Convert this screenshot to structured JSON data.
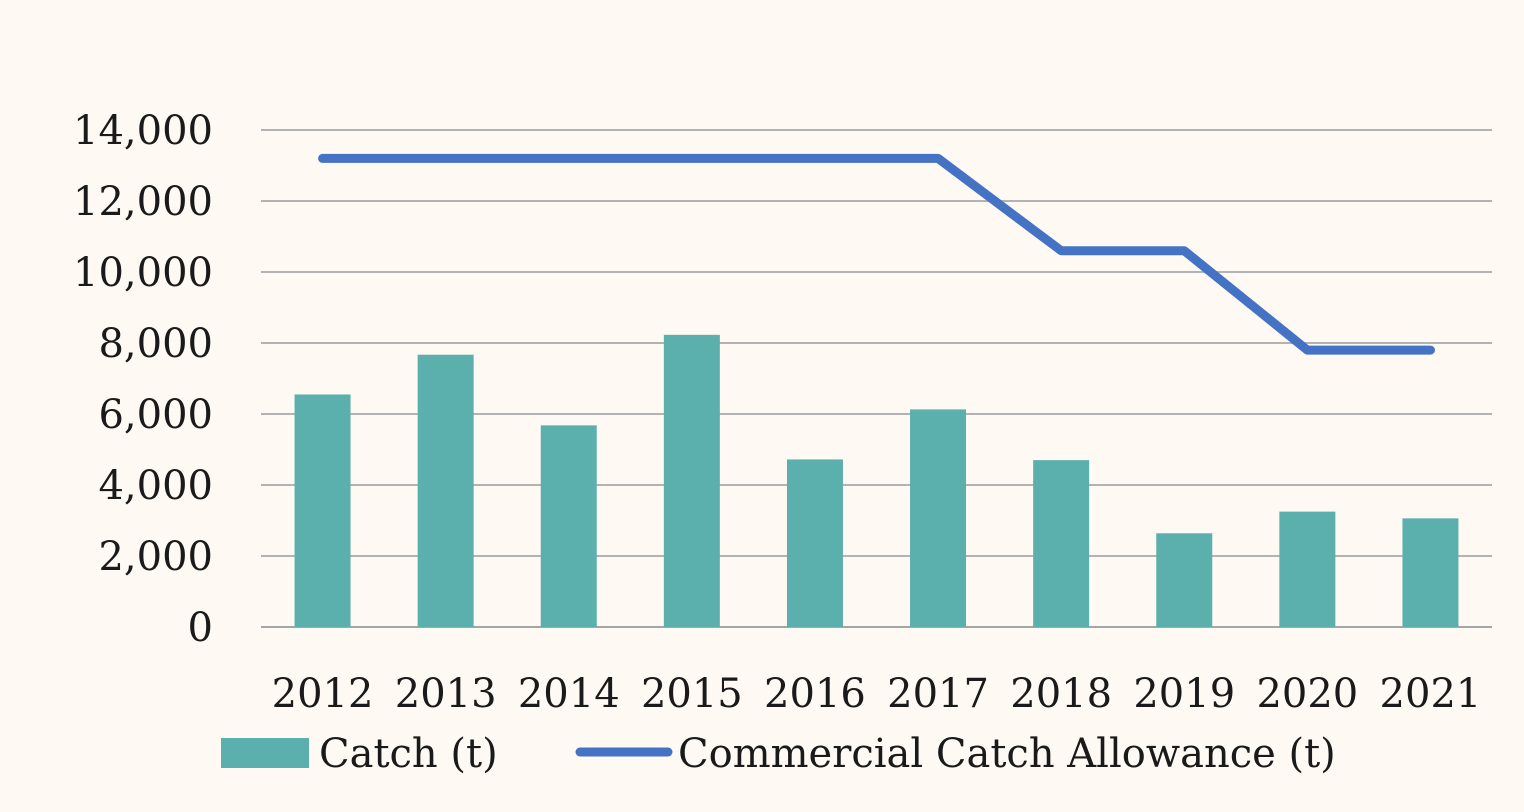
{
  "chart_data": {
    "type": "bar",
    "categories": [
      "2012",
      "2013",
      "2014",
      "2015",
      "2016",
      "2017",
      "2018",
      "2019",
      "2020",
      "2021"
    ],
    "series": [
      {
        "name": "Catch (t)",
        "type": "bar",
        "color": "#5bafad",
        "values": [
          6550,
          7670,
          5680,
          8230,
          4720,
          6130,
          4700,
          2640,
          3250,
          3060
        ]
      },
      {
        "name": "Commercial Catch Allowance (t)",
        "type": "line",
        "color": "#4472c4",
        "values": [
          13200,
          13200,
          13200,
          13200,
          13200,
          13200,
          10600,
          10600,
          7800,
          7800
        ]
      }
    ],
    "y_ticks": [
      "0",
      "2,000",
      "4,000",
      "6,000",
      "8,000",
      "10,000",
      "12,000",
      "14,000"
    ],
    "ylim": [
      0,
      14000
    ],
    "grid": "horizontal",
    "legend_position": "bottom"
  }
}
